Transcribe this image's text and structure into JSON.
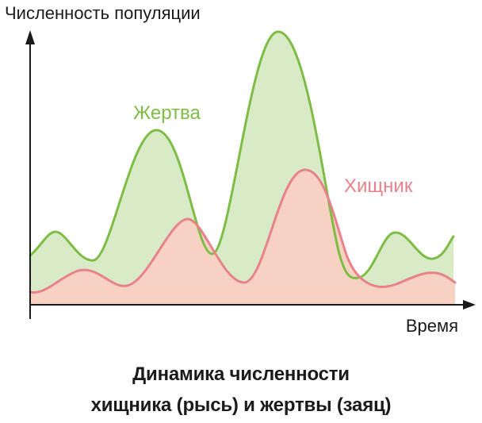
{
  "y_axis_label": "Численность популяции",
  "x_axis_label": "Время",
  "series": {
    "prey": {
      "label": "Жертва",
      "line_color": "#7dbd45",
      "fill_color": "#d9ebc6"
    },
    "predator": {
      "label": "Хищник",
      "line_color": "#e8828a",
      "fill_color": "#f7d2c3"
    }
  },
  "caption": {
    "line1": "Динамика численности",
    "line2": "хищника (рысь) и жертвы (заяц)"
  }
}
